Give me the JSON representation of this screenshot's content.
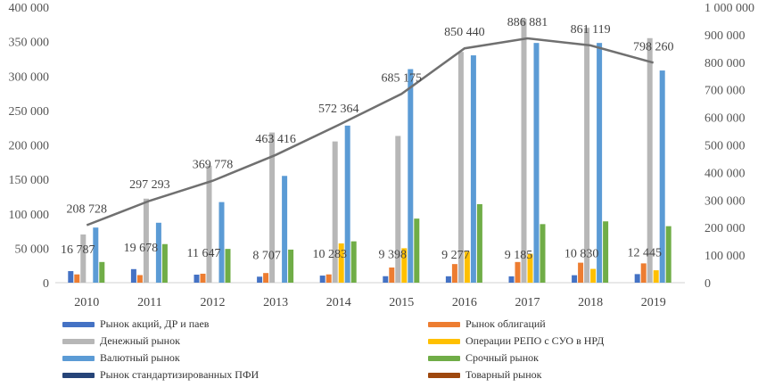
{
  "chart_data": {
    "type": "bar",
    "categories": [
      "2010",
      "2011",
      "2012",
      "2013",
      "2014",
      "2015",
      "2016",
      "2017",
      "2018",
      "2019"
    ],
    "left_axis": {
      "ticks": [
        "0",
        "50 000",
        "100 000",
        "150 000",
        "200 000",
        "250 000",
        "300 000",
        "350 000",
        "400 000"
      ],
      "ylim": [
        0,
        400000
      ]
    },
    "right_axis": {
      "ticks": [
        "0",
        "100 000",
        "200 000",
        "300 000",
        "400 000",
        "500 000",
        "600 000",
        "700 000",
        "800 000",
        "900 000",
        "1 000 000"
      ],
      "ylim": [
        0,
        1000000
      ]
    },
    "series": [
      {
        "name": "Рынок акций, ДР и паев",
        "color": "#4472c4",
        "values": [
          16787,
          19678,
          11647,
          8707,
          10283,
          9398,
          9277,
          9185,
          10830,
          12445
        ]
      },
      {
        "name": "Рынок облигаций",
        "color": "#ed7d31",
        "values": [
          12000,
          11000,
          13000,
          14000,
          12000,
          22000,
          27000,
          30000,
          29000,
          28000
        ]
      },
      {
        "name": "Денежный рынок",
        "color": "#b7b7b7",
        "values": [
          70000,
          122000,
          170000,
          218000,
          205000,
          213000,
          335000,
          383000,
          370000,
          355000
        ]
      },
      {
        "name": "Операции РЕПО с СУО в НРД",
        "color": "#ffc000",
        "values": [
          0,
          0,
          0,
          0,
          57000,
          50000,
          45000,
          42000,
          20000,
          18000
        ]
      },
      {
        "name": "Валютный рынок",
        "color": "#5b9bd5",
        "values": [
          80000,
          87000,
          117000,
          155000,
          228000,
          310000,
          330000,
          348000,
          348000,
          308000
        ]
      },
      {
        "name": "Срочный рынок",
        "color": "#70ad47",
        "values": [
          30000,
          56000,
          49000,
          48000,
          60000,
          93000,
          114000,
          85000,
          89000,
          82000
        ]
      },
      {
        "name": "Рынок стандартизированных ПФИ",
        "color": "#264478",
        "values": [
          0,
          0,
          0,
          0,
          0,
          0,
          0,
          0,
          0,
          0
        ]
      },
      {
        "name": "Товарный рынок",
        "color": "#9e480e",
        "values": [
          0,
          0,
          0,
          0,
          0,
          0,
          0,
          0,
          0,
          0
        ]
      }
    ],
    "line": {
      "axis": "right",
      "color": "#707070",
      "values": [
        208728,
        297293,
        369778,
        463416,
        572364,
        685175,
        850440,
        886881,
        861119,
        798260
      ],
      "labels": [
        "208 728",
        "297 293",
        "369 778",
        "463 416",
        "572 364",
        "685 175",
        "850 440",
        "886 881",
        "861 119",
        "798 260"
      ]
    },
    "bar_labels": [
      "16 787",
      "19 678",
      "11 647",
      "8 707",
      "10 283",
      "9 398",
      "9 277",
      "9 185",
      "10 830",
      "12 445"
    ],
    "legend": [
      [
        "Рынок акций, ДР и паев",
        "Рынок облигаций"
      ],
      [
        "Денежный рынок",
        "Операции РЕПО с СУО в НРД"
      ],
      [
        "Валютный рынок",
        "Срочный рынок"
      ],
      [
        "Рынок стандартизированных ПФИ",
        "Товарный рынок"
      ]
    ],
    "legend_colors": [
      [
        "#4472c4",
        "#ed7d31"
      ],
      [
        "#b7b7b7",
        "#ffc000"
      ],
      [
        "#5b9bd5",
        "#70ad47"
      ],
      [
        "#264478",
        "#9e480e"
      ]
    ],
    "grid": false,
    "legend_position": "bottom"
  }
}
